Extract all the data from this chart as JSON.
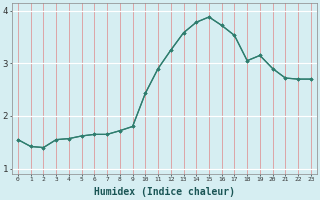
{
  "x": [
    0,
    1,
    2,
    3,
    4,
    5,
    6,
    7,
    8,
    9,
    10,
    11,
    12,
    13,
    14,
    15,
    16,
    17,
    18,
    19,
    20,
    21,
    22,
    23
  ],
  "y": [
    1.55,
    1.42,
    1.4,
    1.55,
    1.57,
    1.62,
    1.65,
    1.65,
    1.72,
    1.8,
    2.43,
    2.9,
    3.25,
    3.58,
    3.78,
    3.88,
    3.72,
    3.53,
    3.05,
    3.15,
    2.9,
    2.72,
    2.7,
    2.7
  ],
  "line_color": "#2e7d6e",
  "marker": "D",
  "marker_size": 1.8,
  "bg_color": "#d6eef2",
  "white_grid_color": "#ffffff",
  "red_grid_color": "#e08888",
  "xlabel": "Humidex (Indice chaleur)",
  "xlabel_fontsize": 7,
  "ylim": [
    0.9,
    4.15
  ],
  "yticks": [
    1,
    2,
    3,
    4
  ],
  "ytick_labels": [
    "1",
    "2",
    "3",
    "4"
  ],
  "xlim": [
    -0.5,
    23.5
  ],
  "xticks": [
    0,
    1,
    2,
    3,
    4,
    5,
    6,
    7,
    8,
    9,
    10,
    11,
    12,
    13,
    14,
    15,
    16,
    17,
    18,
    19,
    20,
    21,
    22,
    23
  ],
  "xtick_labels": [
    "0",
    "1",
    "2",
    "3",
    "4",
    "5",
    "6",
    "7",
    "8",
    "9",
    "10",
    "11",
    "12",
    "13",
    "14",
    "15",
    "16",
    "17",
    "18",
    "19",
    "20",
    "21",
    "22",
    "23"
  ]
}
